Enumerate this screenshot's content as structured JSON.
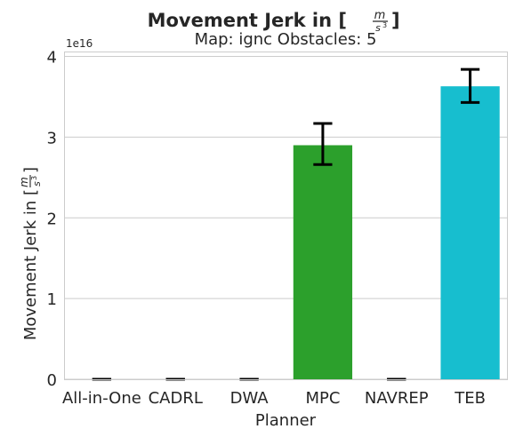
{
  "chart_data": {
    "type": "bar",
    "title": "Movement Jerk in [m/s³]",
    "title_parts": {
      "prefix": "Movement Jerk in [",
      "numerator": "m",
      "denominator": "s",
      "exponent": "3",
      "suffix": "]"
    },
    "subtitle": "Map: ignc Obstacles: 5",
    "xlabel": "Planner",
    "ylabel": "Movement Jerk in [m/s³]",
    "ylabel_parts": {
      "prefix": "Movement Jerk in [",
      "numerator": "m",
      "denominator": "s",
      "exponent": "3",
      "suffix": "]"
    },
    "y_multiplier": "1e16",
    "ylim": [
      0,
      4.05
    ],
    "yticks": [
      0,
      1,
      2,
      3,
      4
    ],
    "grid": true,
    "categories": [
      "All-in-One",
      "CADRL",
      "DWA",
      "MPC",
      "NAVREP",
      "TEB"
    ],
    "values": [
      0,
      0,
      0,
      2.9,
      0,
      3.63
    ],
    "error_low": [
      0,
      0,
      0,
      2.66,
      0,
      3.43
    ],
    "error_high": [
      0,
      0,
      0,
      3.17,
      0,
      3.84
    ],
    "colors": [
      "#1f77b4",
      "#ff7f0e",
      "#9467bd",
      "#2ca02c",
      "#e377c2",
      "#17becf"
    ]
  }
}
